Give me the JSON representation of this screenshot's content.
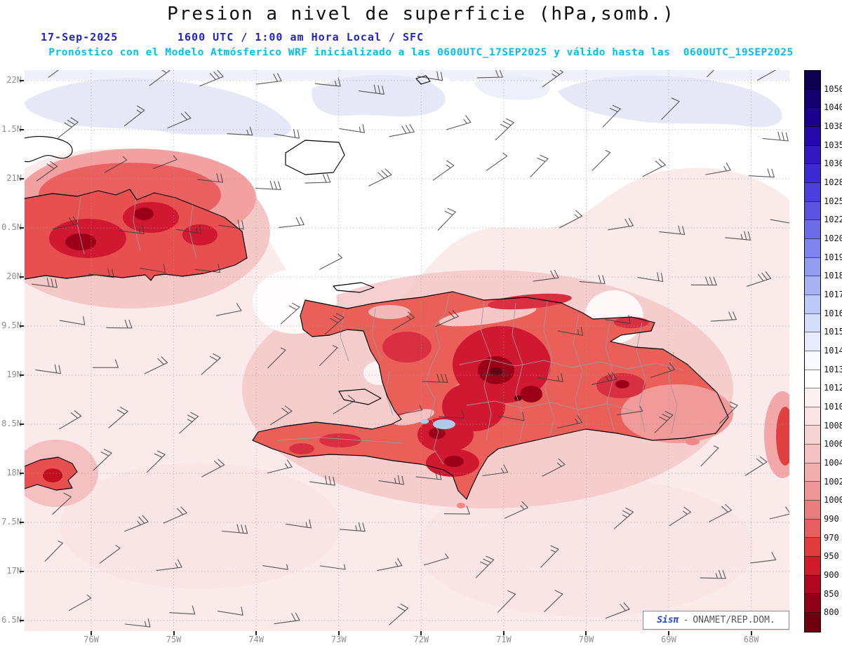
{
  "header": {
    "title": "Presion a nivel de superficie (hPa,somb.)",
    "date": "17-Sep-2025",
    "time_line": "1600 UTC / 1:00 am Hora Local / SFC",
    "forecast_line": "Pronóstico con el Modelo Atmósferico WRF inicializado a las 0600UTC_17SEP2025 y válido hasta las  0600UTC_19SEP2025"
  },
  "map": {
    "lat_labels": [
      "22N",
      "1.5N",
      "21N",
      "0.5N",
      "20N",
      "9.5N",
      "19N",
      "8.5N",
      "18N",
      "7.5N",
      "17N",
      "6.5N"
    ],
    "lon_labels": [
      "76W",
      "75W",
      "74W",
      "73W",
      "72W",
      "71W",
      "70W",
      "69W",
      "68W"
    ]
  },
  "colorbar": {
    "units": "hPa",
    "labels": [
      1050,
      1040,
      1038,
      1035,
      1030,
      1028,
      1025,
      1022,
      1020,
      1019,
      1018,
      1017,
      1016,
      1015,
      1014,
      1013,
      1012,
      1010,
      1008,
      1006,
      1004,
      1002,
      1000,
      990,
      970,
      950,
      900,
      850,
      800
    ],
    "colors": [
      "#0d0052",
      "#150070",
      "#1e008e",
      "#2807ab",
      "#3318c4",
      "#3d2ad4",
      "#4a3edd",
      "#5a54e4",
      "#6c6cea",
      "#7f84ef",
      "#939cf3",
      "#a8b3f6",
      "#bdc9f9",
      "#d2dcfb",
      "#e6ecfd",
      "#f7f9ff",
      "#ffffff",
      "#fdf1f1",
      "#fbe3e3",
      "#f8d3d3",
      "#f5c1c1",
      "#f2adad",
      "#ef9797",
      "#eb7d7d",
      "#e65e5e",
      "#e13b3b",
      "#d31a2b",
      "#b20520",
      "#900018",
      "#6e0011"
    ]
  },
  "watermark": {
    "brand": "Sisπ",
    "separator": "-",
    "org": "ONAMET/REP.DOM."
  },
  "chart_data": {
    "type": "heatmap",
    "title": "Presion a nivel de superficie (hPa,somb.)",
    "variable": "Presión a nivel de superficie",
    "units": "hPa",
    "model": "WRF",
    "init": "0600UTC_17SEP2025",
    "valid_until": "0600UTC_19SEP2025",
    "valid_time": "1600 UTC / 1:00 am Hora Local",
    "level": "SFC",
    "x_ticks": [
      "76W",
      "75W",
      "74W",
      "73W",
      "72W",
      "71W",
      "70W",
      "69W",
      "68W"
    ],
    "y_ticks": [
      "22N",
      "1.5N",
      "21N",
      "0.5N",
      "20N",
      "9.5N",
      "19N",
      "8.5N",
      "18N",
      "7.5N",
      "17N",
      "6.5N"
    ],
    "colorbar_levels": [
      1050,
      1040,
      1038,
      1035,
      1030,
      1028,
      1025,
      1022,
      1020,
      1019,
      1018,
      1017,
      1016,
      1015,
      1014,
      1013,
      1012,
      1010,
      1008,
      1006,
      1004,
      1002,
      1000,
      990,
      970,
      950,
      900,
      850,
      800
    ],
    "legend_position": "right",
    "grid": "dotted",
    "overlays": [
      "wind barbs",
      "coastlines (Cuba, Hispaniola, Jamaica, Inagua, Turks)",
      "province boundaries",
      "surface pressure shading: ~1010-1013 hPa over sea (white/pale pink), low values (dark red, <900 hPa) over mountainous interior of Hispaniola and eastern Cuba"
    ]
  }
}
